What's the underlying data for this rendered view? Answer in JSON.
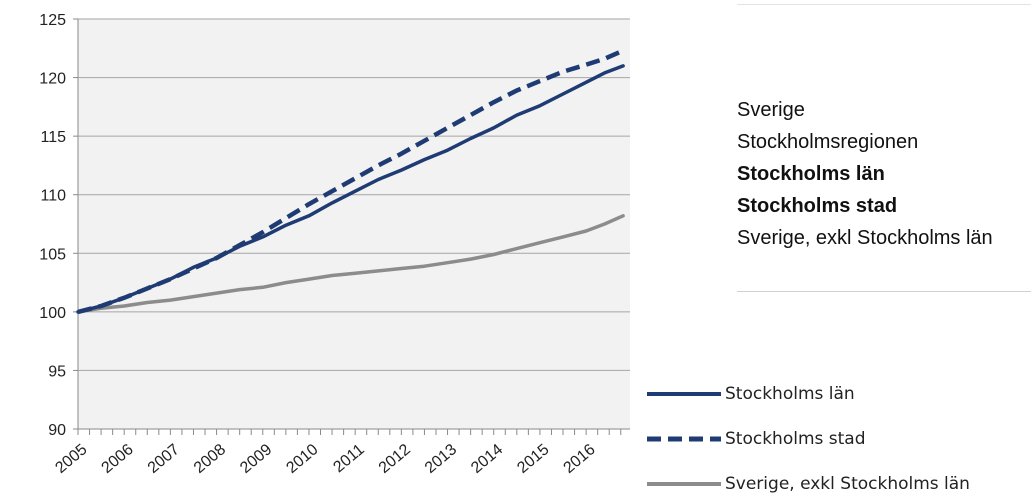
{
  "chart_data": {
    "type": "line",
    "ylim": [
      90,
      125
    ],
    "yticks": [
      "125",
      "120",
      "115",
      "110",
      "105",
      "100",
      "95",
      "90"
    ],
    "x_labels": [
      "2005",
      "2006",
      "2007",
      "2008",
      "2009",
      "2010",
      "2011",
      "2012",
      "2013",
      "2014",
      "2015",
      "2016"
    ],
    "grid": true,
    "plot_background": "#f2f2f2",
    "series": [
      {
        "name": "Stockholms län",
        "color": "#1f3b73",
        "style": "solid",
        "points": [
          [
            2005.0,
            100.0
          ],
          [
            2005.5,
            100.5
          ],
          [
            2006.0,
            101.2
          ],
          [
            2006.5,
            102.0
          ],
          [
            2007.0,
            102.8
          ],
          [
            2007.5,
            103.8
          ],
          [
            2008.0,
            104.6
          ],
          [
            2008.5,
            105.6
          ],
          [
            2009.0,
            106.4
          ],
          [
            2009.5,
            107.4
          ],
          [
            2010.0,
            108.2
          ],
          [
            2010.5,
            109.3
          ],
          [
            2011.0,
            110.3
          ],
          [
            2011.5,
            111.3
          ],
          [
            2012.0,
            112.1
          ],
          [
            2012.5,
            113.0
          ],
          [
            2013.0,
            113.8
          ],
          [
            2013.5,
            114.8
          ],
          [
            2014.0,
            115.7
          ],
          [
            2014.5,
            116.8
          ],
          [
            2015.0,
            117.6
          ],
          [
            2015.5,
            118.6
          ],
          [
            2016.0,
            119.6
          ],
          [
            2016.4,
            120.4
          ],
          [
            2016.8,
            121.0
          ]
        ]
      },
      {
        "name": "Stockholms stad",
        "color": "#1f3b73",
        "style": "dashed",
        "points": [
          [
            2005.0,
            100.0
          ],
          [
            2005.5,
            100.5
          ],
          [
            2006.0,
            101.2
          ],
          [
            2006.5,
            102.0
          ],
          [
            2007.0,
            102.8
          ],
          [
            2007.5,
            103.7
          ],
          [
            2008.0,
            104.6
          ],
          [
            2008.5,
            105.7
          ],
          [
            2009.0,
            106.8
          ],
          [
            2009.5,
            108.0
          ],
          [
            2010.0,
            109.2
          ],
          [
            2010.5,
            110.3
          ],
          [
            2011.0,
            111.4
          ],
          [
            2011.5,
            112.5
          ],
          [
            2012.0,
            113.5
          ],
          [
            2012.5,
            114.6
          ],
          [
            2013.0,
            115.7
          ],
          [
            2013.5,
            116.8
          ],
          [
            2014.0,
            117.9
          ],
          [
            2014.5,
            118.9
          ],
          [
            2015.0,
            119.7
          ],
          [
            2015.5,
            120.5
          ],
          [
            2016.0,
            121.1
          ],
          [
            2016.4,
            121.6
          ],
          [
            2016.8,
            122.3
          ]
        ]
      },
      {
        "name": "Sverige, exkl Stockholms län",
        "color": "#8c8c8c",
        "style": "solid",
        "points": [
          [
            2005.0,
            100.0
          ],
          [
            2005.5,
            100.3
          ],
          [
            2006.0,
            100.5
          ],
          [
            2006.5,
            100.8
          ],
          [
            2007.0,
            101.0
          ],
          [
            2007.5,
            101.3
          ],
          [
            2008.0,
            101.6
          ],
          [
            2008.5,
            101.9
          ],
          [
            2009.0,
            102.1
          ],
          [
            2009.5,
            102.5
          ],
          [
            2010.0,
            102.8
          ],
          [
            2010.5,
            103.1
          ],
          [
            2011.0,
            103.3
          ],
          [
            2011.5,
            103.5
          ],
          [
            2012.0,
            103.7
          ],
          [
            2012.5,
            103.9
          ],
          [
            2013.0,
            104.2
          ],
          [
            2013.5,
            104.5
          ],
          [
            2014.0,
            104.9
          ],
          [
            2014.5,
            105.4
          ],
          [
            2015.0,
            105.9
          ],
          [
            2015.5,
            106.4
          ],
          [
            2016.0,
            106.9
          ],
          [
            2016.4,
            107.5
          ],
          [
            2016.8,
            108.2
          ]
        ]
      }
    ]
  },
  "list_panel": {
    "items": [
      {
        "label": "Sverige",
        "bold": false
      },
      {
        "label": "Stockholmsregionen",
        "bold": false
      },
      {
        "label": "Stockholms län",
        "bold": true
      },
      {
        "label": "Stockholms stad",
        "bold": true
      },
      {
        "label": "Sverige, exkl Stockholms län",
        "bold": false
      }
    ]
  }
}
